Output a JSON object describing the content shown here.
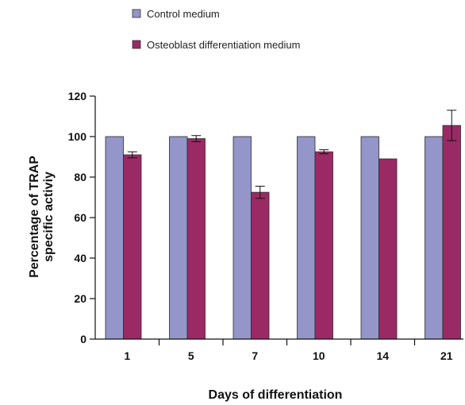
{
  "chart_data": {
    "type": "bar",
    "categories": [
      "1",
      "5",
      "7",
      "10",
      "14",
      "21"
    ],
    "series": [
      {
        "name": "Control medium",
        "values": [
          100,
          100,
          100,
          100,
          100,
          100
        ],
        "errors": [
          0,
          0,
          0,
          0,
          0,
          0
        ],
        "color": "#9495c9"
      },
      {
        "name": "Osteoblast differentiation medium",
        "values": [
          91,
          99,
          72.5,
          92.5,
          89,
          105.5
        ],
        "errors": [
          1.5,
          1.5,
          3,
          1,
          0,
          7.5
        ],
        "color": "#9a2a64"
      }
    ],
    "xlabel": "Days of differentiation",
    "ylabel_lines": [
      "Percentage of TRAP",
      "specific activiy"
    ],
    "yticks": [
      0,
      20,
      40,
      60,
      80,
      100,
      120
    ],
    "ylim": [
      0,
      120
    ],
    "grid": false,
    "legend_position": "top"
  }
}
